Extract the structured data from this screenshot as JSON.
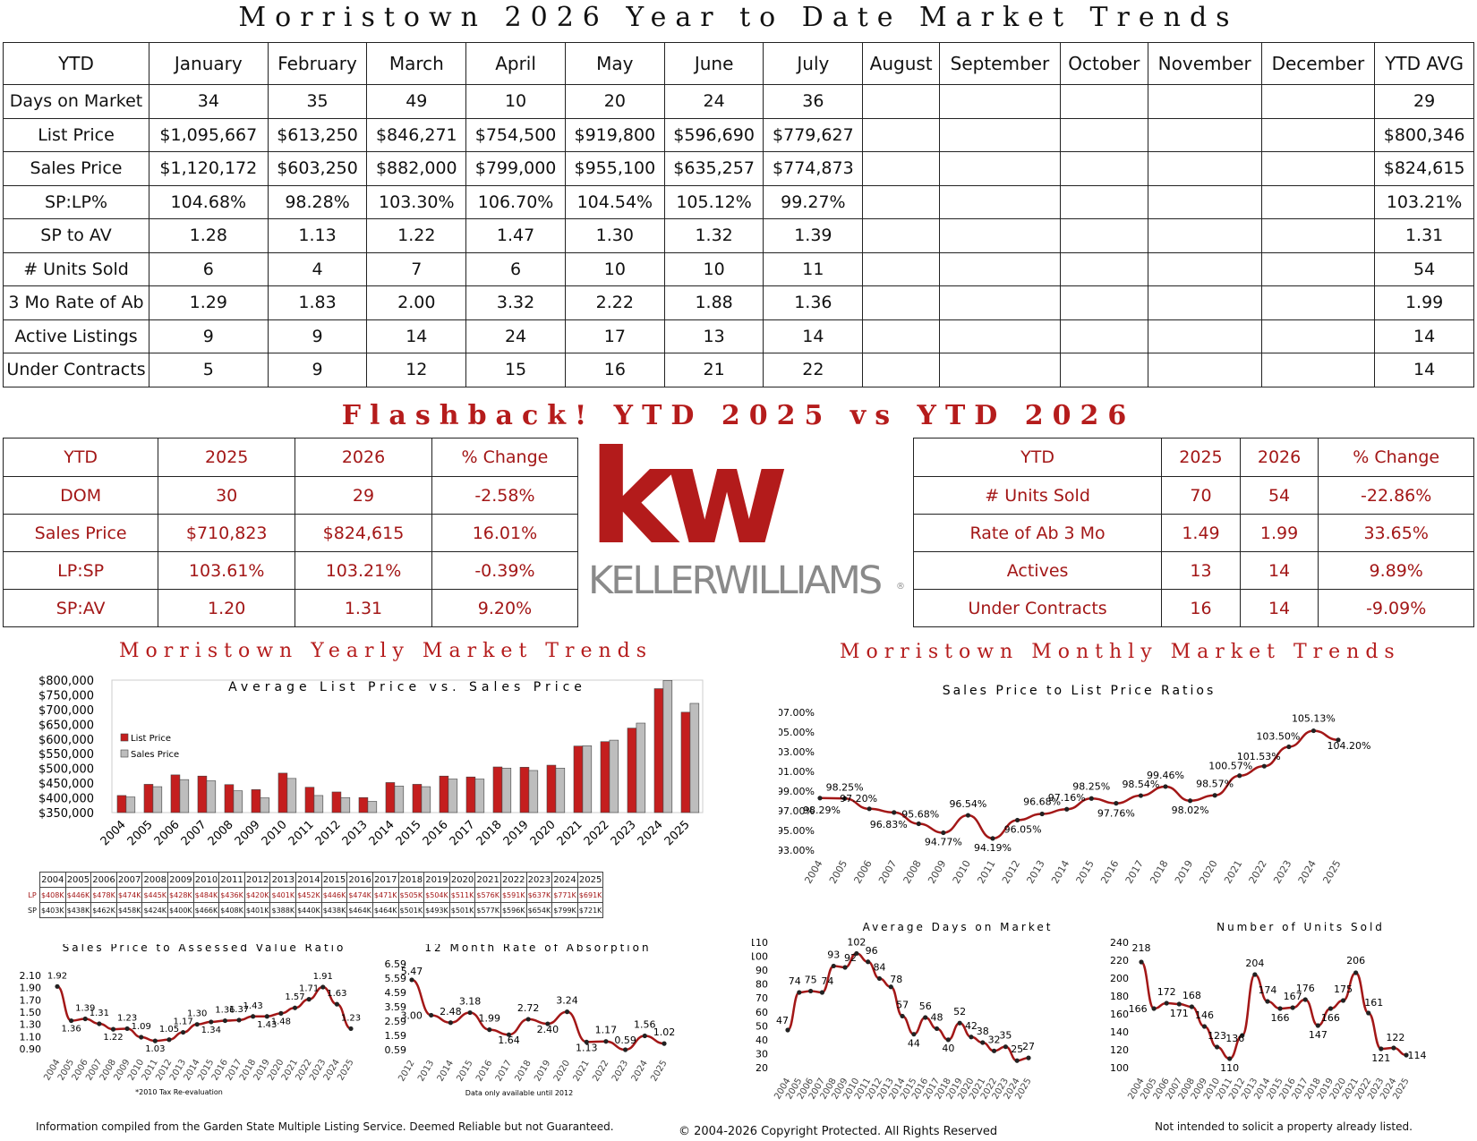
{
  "main_title": "Morristown 2026 Year to Date Market Trends",
  "ytd_table": {
    "corner": "YTD",
    "columns": [
      "January",
      "February",
      "March",
      "April",
      "May",
      "June",
      "July",
      "August",
      "September",
      "October",
      "November",
      "December",
      "YTD AVG"
    ],
    "rows": [
      {
        "label": "Days on Market",
        "values": [
          "34",
          "35",
          "49",
          "10",
          "20",
          "24",
          "36",
          "",
          "",
          "",
          "",
          "",
          "29"
        ]
      },
      {
        "label": "List Price",
        "values": [
          "$1,095,667",
          "$613,250",
          "$846,271",
          "$754,500",
          "$919,800",
          "$596,690",
          "$779,627",
          "",
          "",
          "",
          "",
          "",
          "$800,346"
        ]
      },
      {
        "label": "Sales Price",
        "values": [
          "$1,120,172",
          "$603,250",
          "$882,000",
          "$799,000",
          "$955,100",
          "$635,257",
          "$774,873",
          "",
          "",
          "",
          "",
          "",
          "$824,615"
        ]
      },
      {
        "label": "SP:LP%",
        "values": [
          "104.68%",
          "98.28%",
          "103.30%",
          "106.70%",
          "104.54%",
          "105.12%",
          "99.27%",
          "",
          "",
          "",
          "",
          "",
          "103.21%"
        ]
      },
      {
        "label": "SP to AV",
        "values": [
          "1.28",
          "1.13",
          "1.22",
          "1.47",
          "1.30",
          "1.32",
          "1.39",
          "",
          "",
          "",
          "",
          "",
          "1.31"
        ]
      },
      {
        "label": "# Units Sold",
        "values": [
          "6",
          "4",
          "7",
          "6",
          "10",
          "10",
          "11",
          "",
          "",
          "",
          "",
          "",
          "54"
        ]
      },
      {
        "label": "3 Mo Rate of Ab",
        "values": [
          "1.29",
          "1.83",
          "2.00",
          "3.32",
          "2.22",
          "1.88",
          "1.36",
          "",
          "",
          "",
          "",
          "",
          "1.99"
        ]
      },
      {
        "label": "Active Listings",
        "values": [
          "9",
          "9",
          "14",
          "24",
          "17",
          "13",
          "14",
          "",
          "",
          "",
          "",
          "",
          "14"
        ]
      },
      {
        "label": "Under Contracts",
        "values": [
          "5",
          "9",
          "12",
          "15",
          "16",
          "21",
          "22",
          "",
          "",
          "",
          "",
          "",
          "14"
        ]
      }
    ]
  },
  "flashback_title": "Flashback!  YTD 2025 vs YTD 2026",
  "compare_left": {
    "header": [
      "YTD",
      "2025",
      "2026",
      "% Change"
    ],
    "rows": [
      [
        "DOM",
        "30",
        "29",
        "-2.58%"
      ],
      [
        "Sales Price",
        "$710,823",
        "$824,615",
        "16.01%"
      ],
      [
        "LP:SP",
        "103.61%",
        "103.21%",
        "-0.39%"
      ],
      [
        "SP:AV",
        "1.20",
        "1.31",
        "9.20%"
      ]
    ]
  },
  "compare_right": {
    "header": [
      "YTD",
      "2025",
      "2026",
      "% Change"
    ],
    "rows": [
      [
        "# Units Sold",
        "70",
        "54",
        "-22.86%"
      ],
      [
        "Rate of Ab 3 Mo",
        "1.49",
        "1.99",
        "33.65%"
      ],
      [
        "Actives",
        "13",
        "14",
        "9.89%"
      ],
      [
        "Under Contracts",
        "16",
        "14",
        "-9.09%"
      ]
    ]
  },
  "logo": {
    "mark": "kw",
    "text": "KELLERWILLIAMS",
    "reg": "®",
    "color": "#b31b1b"
  },
  "yearly_title": "Morristown Yearly Market Trends",
  "monthly_title": "Morristown Monthly Market Trends",
  "yearly_table": {
    "years": [
      "2004",
      "2005",
      "2006",
      "2007",
      "2008",
      "2009",
      "2010",
      "2011",
      "2012",
      "2013",
      "2014",
      "2015",
      "2016",
      "2017",
      "2018",
      "2019",
      "2020",
      "2021",
      "2022",
      "2023",
      "2024",
      "2025"
    ],
    "lp_label": "LP",
    "sp_label": "SP",
    "lp": [
      "$408K",
      "$446K",
      "$478K",
      "$474K",
      "$445K",
      "$428K",
      "$484K",
      "$436K",
      "$420K",
      "$401K",
      "$452K",
      "$446K",
      "$474K",
      "$471K",
      "$505K",
      "$504K",
      "$511K",
      "$576K",
      "$591K",
      "$637K",
      "$771K",
      "$691K"
    ],
    "sp": [
      "$403K",
      "$438K",
      "$462K",
      "$458K",
      "$424K",
      "$400K",
      "$466K",
      "$408K",
      "$401K",
      "$388K",
      "$440K",
      "$438K",
      "$464K",
      "$464K",
      "$501K",
      "$493K",
      "$501K",
      "$577K",
      "$596K",
      "$654K",
      "$799K",
      "$721K"
    ]
  },
  "chart_data": [
    {
      "type": "bar",
      "title": "Average List Price vs. Sales Price",
      "categories": [
        "2004",
        "2005",
        "2006",
        "2007",
        "2008",
        "2009",
        "2010",
        "2011",
        "2012",
        "2013",
        "2014",
        "2015",
        "2016",
        "2017",
        "2018",
        "2019",
        "2020",
        "2021",
        "2022",
        "2023",
        "2024",
        "2025"
      ],
      "series": [
        {
          "name": "List Price",
          "color": "#c41e1e",
          "values": [
            408000,
            446000,
            478000,
            474000,
            445000,
            428000,
            484000,
            436000,
            420000,
            401000,
            452000,
            446000,
            474000,
            471000,
            505000,
            504000,
            511000,
            576000,
            591000,
            637000,
            771000,
            691000
          ]
        },
        {
          "name": "Sales Price",
          "color": "#bdbdbd",
          "values": [
            403000,
            438000,
            462000,
            458000,
            424000,
            400000,
            466000,
            408000,
            401000,
            388000,
            440000,
            438000,
            464000,
            464000,
            501000,
            493000,
            501000,
            577000,
            596000,
            654000,
            799000,
            721000
          ]
        }
      ],
      "ylim": [
        350000,
        800000
      ],
      "yticks": [
        "$350,000",
        "$400,000",
        "$450,000",
        "$500,000",
        "$550,000",
        "$600,000",
        "$650,000",
        "$700,000",
        "$750,000",
        "$800,000"
      ],
      "legend": "top-left"
    },
    {
      "type": "line",
      "title": "Sales Price to List Price Ratios",
      "x": [
        "2004",
        "2005",
        "2006",
        "2007",
        "2008",
        "2009",
        "2010",
        "2011",
        "2012",
        "2013",
        "2014",
        "2015",
        "2016",
        "2017",
        "2018",
        "2019",
        "2020",
        "2021",
        "2022",
        "2023",
        "2024",
        "2025"
      ],
      "values": [
        98.29,
        98.25,
        97.2,
        96.83,
        95.68,
        94.77,
        96.54,
        94.19,
        96.05,
        96.68,
        97.16,
        98.25,
        97.76,
        98.54,
        99.46,
        98.02,
        98.57,
        100.57,
        101.53,
        103.5,
        105.13,
        104.2
      ],
      "labels": [
        "98.29%",
        "98.25%",
        "97.20%",
        "96.83%",
        "95.68%",
        "94.77%",
        "96.54%",
        "94.19%",
        "96.05%",
        "96.68%",
        "97.16%",
        "98.25%",
        "97.76%",
        "98.54%",
        "99.46%",
        "98.02%",
        "98.57%",
        "100.57%",
        "101.53%",
        "103.50%",
        "105.13%",
        "104.20%"
      ],
      "ylim": [
        93,
        107
      ],
      "yticks": [
        "93.00%",
        "95.00%",
        "97.00%",
        "99.00%",
        "101.00%",
        "103.00%",
        "105.00%",
        "107.00%"
      ],
      "color": "#a31717"
    },
    {
      "type": "line",
      "title": "Sales Price to Assessed Value Ratio",
      "x": [
        "2004",
        "2005",
        "2006",
        "2007",
        "2008",
        "2009",
        "2010",
        "2011",
        "2012",
        "2013",
        "2014",
        "2015",
        "2016",
        "2017",
        "2018",
        "2019",
        "2020",
        "2021",
        "2022",
        "2023",
        "2024",
        "2025"
      ],
      "values": [
        1.92,
        1.36,
        1.39,
        1.31,
        1.22,
        1.23,
        1.09,
        1.03,
        1.05,
        1.17,
        1.3,
        1.34,
        1.36,
        1.37,
        1.43,
        1.43,
        1.48,
        1.57,
        1.71,
        1.91,
        1.63,
        1.23
      ],
      "labels": [
        "1.92",
        "1.36",
        "1.39",
        "1.31",
        "1.22",
        "1.23",
        "1.09",
        "1.03",
        "1.05",
        "1.17",
        "1.30",
        "1.34",
        "1.36",
        "1.37",
        "1.43",
        "1.43",
        "1.48",
        "1.57",
        "1.71",
        "1.91",
        "1.63",
        "1.23"
      ],
      "ylim": [
        0.9,
        2.1
      ],
      "yticks": [
        "0.90",
        "1.10",
        "1.30",
        "1.50",
        "1.70",
        "1.90",
        "2.10"
      ],
      "note": "*2010 Tax Re-evaluation",
      "color": "#a31717"
    },
    {
      "type": "line",
      "title": "12 Month Rate of Absorption",
      "x": [
        "2012",
        "2013",
        "2014",
        "2015",
        "2016",
        "2017",
        "2018",
        "2019",
        "2020",
        "2021",
        "2022",
        "2023",
        "2024",
        "2025"
      ],
      "values": [
        5.47,
        3.0,
        2.48,
        3.18,
        1.99,
        1.64,
        2.72,
        2.4,
        3.24,
        1.13,
        1.17,
        0.59,
        1.56,
        1.02
      ],
      "labels": [
        "5.47",
        "3.00",
        "2.48",
        "3.18",
        "1.99",
        "1.64",
        "2.72",
        "2.40",
        "3.24",
        "1.13",
        "1.17",
        "0.59",
        "1.56",
        "1.02"
      ],
      "ylim": [
        0.59,
        6.59
      ],
      "yticks": [
        "0.59",
        "1.59",
        "2.59",
        "3.59",
        "4.59",
        "5.59",
        "6.59"
      ],
      "note": "Data only available until 2012",
      "color": "#a31717"
    },
    {
      "type": "line",
      "title": "Average Days on Market",
      "x": [
        "2004",
        "2005",
        "2006",
        "2007",
        "2008",
        "2009",
        "2010",
        "2011",
        "2012",
        "2013",
        "2014",
        "2015",
        "2016",
        "2017",
        "2018",
        "2019",
        "2020",
        "2021",
        "2022",
        "2023",
        "2024",
        "2025"
      ],
      "values": [
        47,
        74,
        75,
        74,
        93,
        92,
        102,
        96,
        84,
        78,
        57,
        44,
        56,
        48,
        40,
        52,
        42,
        38,
        32,
        35,
        25,
        27
      ],
      "labels": [
        "47",
        "74",
        "75",
        "74",
        "93",
        "92",
        "102",
        "96",
        "84",
        "78",
        "57",
        "44",
        "56",
        "48",
        "40",
        "52",
        "42",
        "38",
        "32",
        "35",
        "25",
        "27"
      ],
      "ylim": [
        20,
        110
      ],
      "yticks": [
        "20",
        "30",
        "40",
        "50",
        "60",
        "70",
        "80",
        "90",
        "100",
        "110"
      ],
      "color": "#a31717"
    },
    {
      "type": "line",
      "title": "Number of Units Sold",
      "x": [
        "2004",
        "2005",
        "2006",
        "2007",
        "2008",
        "2009",
        "2010",
        "2011",
        "2012",
        "2013",
        "2014",
        "2015",
        "2016",
        "2017",
        "2018",
        "2019",
        "2020",
        "2021",
        "2022",
        "2023",
        "2024",
        "2025"
      ],
      "values": [
        218,
        166,
        172,
        171,
        168,
        146,
        123,
        110,
        136,
        204,
        174,
        166,
        167,
        176,
        147,
        166,
        175,
        206,
        161,
        121,
        122,
        114
      ],
      "labels": [
        "218",
        "166",
        "172",
        "171",
        "168",
        "146",
        "123",
        "110",
        "136",
        "204",
        "174",
        "166",
        "167",
        "176",
        "147",
        "166",
        "175",
        "206",
        "161",
        "121",
        "122",
        "114"
      ],
      "ylim": [
        100,
        240
      ],
      "yticks": [
        "100",
        "120",
        "140",
        "160",
        "180",
        "200",
        "220",
        "240"
      ],
      "color": "#a31717"
    }
  ],
  "footer": {
    "left": "Information compiled from the Garden State Multiple Listing Service.  Deemed Reliable but not Guaranteed.",
    "center": "© 2004-2026 Copyright Protected.  All Rights Reserved",
    "right": "Not intended to solicit a property already listed."
  }
}
